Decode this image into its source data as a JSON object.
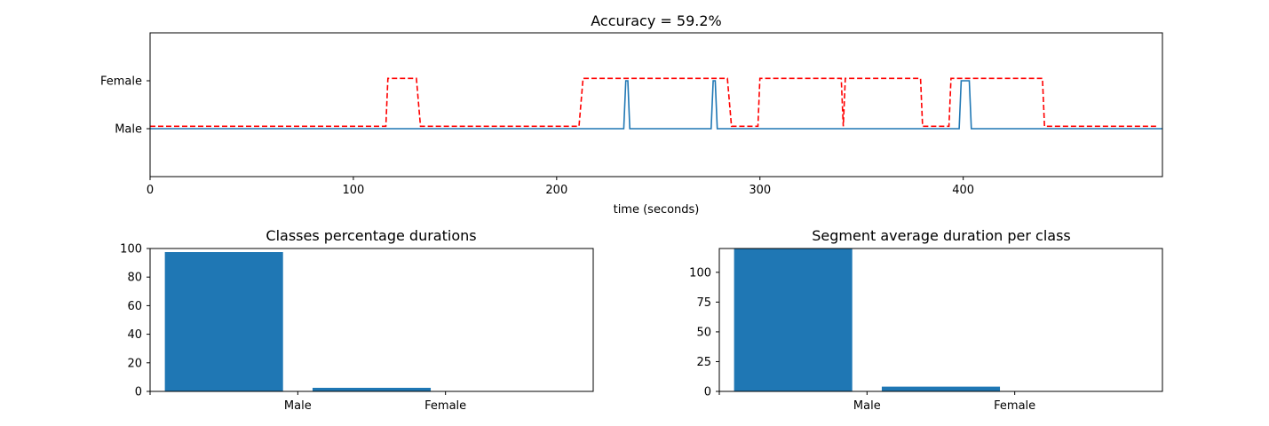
{
  "chart_data": [
    {
      "type": "line",
      "title": "Accuracy = 59.2%",
      "xlabel": "time (seconds)",
      "ylabel": "",
      "xlim": [
        0,
        498
      ],
      "ylim": [
        -1,
        2
      ],
      "xticks": [
        0,
        100,
        200,
        300,
        400
      ],
      "yticks": [
        {
          "value": 0,
          "label": "Male"
        },
        {
          "value": 1,
          "label": "Female"
        }
      ],
      "series": [
        {
          "color": "#1f77b4",
          "linestyle": "solid",
          "x": [
            0,
            233,
            234,
            235,
            236,
            276,
            277,
            278,
            279,
            398,
            399,
            403,
            404,
            498
          ],
          "y": [
            0,
            0,
            1,
            1,
            0,
            0,
            1,
            1,
            0,
            0,
            1,
            1,
            0,
            0
          ]
        },
        {
          "color": "#ff0000",
          "linestyle": "dashed",
          "x": [
            0,
            116,
            117,
            131,
            133,
            211,
            213,
            284,
            286,
            299,
            300,
            340,
            341,
            342,
            379,
            380,
            393,
            394,
            439,
            440,
            495
          ],
          "y": [
            0.05,
            0.05,
            1.05,
            1.05,
            0.05,
            0.05,
            1.05,
            1.05,
            0.05,
            0.05,
            1.05,
            1.05,
            0.05,
            1.05,
            1.05,
            0.05,
            0.05,
            1.05,
            1.05,
            0.05,
            0.05
          ]
        }
      ]
    },
    {
      "type": "bar",
      "title": "Classes percentage durations",
      "categories": [
        "Male",
        "Female"
      ],
      "values": [
        97.5,
        2.5
      ],
      "color": "#1f77b4",
      "ylim": [
        0,
        100
      ],
      "yticks": [
        0,
        20,
        40,
        60,
        80,
        100
      ]
    },
    {
      "type": "bar",
      "title": "Segment average duration per class",
      "categories": [
        "Male",
        "Female"
      ],
      "values": [
        125,
        4
      ],
      "color": "#1f77b4",
      "ylim": [
        0,
        120
      ],
      "yticks": [
        0,
        25,
        50,
        75,
        100
      ]
    }
  ]
}
